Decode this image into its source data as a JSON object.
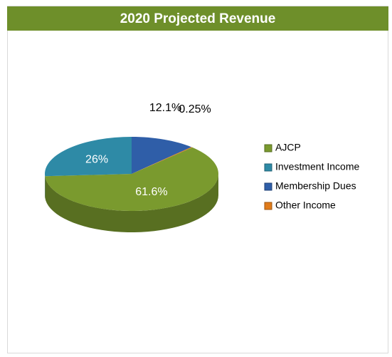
{
  "chart_data": {
    "type": "pie",
    "title": "2020 Projected Revenue",
    "categories": [
      "AJCP",
      "Investment Income",
      "Membership Dues",
      "Other Income"
    ],
    "values": [
      61.6,
      26,
      12.1,
      0.25
    ],
    "value_labels": [
      "61.6%",
      "26%",
      "12.1%",
      "0.25%"
    ],
    "colors": [
      "#7a9a2e",
      "#2e8aa6",
      "#2f5ea8",
      "#e07b1a"
    ],
    "legend": "right"
  }
}
